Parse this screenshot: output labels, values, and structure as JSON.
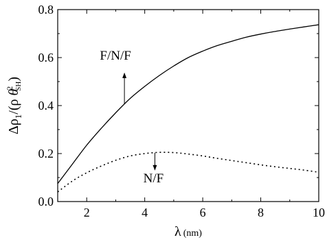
{
  "chart_data": {
    "type": "line",
    "xlabel": {
      "main": "λ",
      "unit": "(nm)"
    },
    "ylabel": {
      "prefix": "Δρ",
      "sub": "1",
      "mid": "/(ρ ",
      "theta": "θ",
      "sup": "2",
      "thsub": "SH",
      "close": ")"
    },
    "xlim": [
      1,
      10
    ],
    "ylim": [
      0,
      0.8
    ],
    "x_ticks": [
      2,
      4,
      6,
      8,
      10
    ],
    "y_ticks": [
      0.0,
      0.2,
      0.4,
      0.6,
      0.8
    ],
    "x_tick_labels": [
      "2",
      "4",
      "6",
      "8",
      "10"
    ],
    "y_tick_labels": [
      "0.0",
      "0.2",
      "0.4",
      "0.6",
      "0.8"
    ],
    "series": [
      {
        "name": "F/N/F",
        "style": "solid",
        "x": [
          1,
          1.5,
          2,
          2.5,
          3,
          3.5,
          4,
          4.5,
          5,
          5.5,
          6,
          6.5,
          7,
          7.5,
          8,
          8.5,
          9,
          9.5,
          10
        ],
        "y": [
          0.075,
          0.155,
          0.235,
          0.305,
          0.37,
          0.43,
          0.48,
          0.525,
          0.565,
          0.6,
          0.627,
          0.65,
          0.668,
          0.685,
          0.698,
          0.709,
          0.719,
          0.728,
          0.737
        ]
      },
      {
        "name": "N/F",
        "style": "dotted",
        "x": [
          1,
          1.5,
          2,
          2.5,
          3,
          3.5,
          4,
          4.5,
          5,
          5.5,
          6,
          6.5,
          7,
          7.5,
          8,
          8.5,
          9,
          9.5,
          10
        ],
        "y": [
          0.04,
          0.085,
          0.12,
          0.148,
          0.172,
          0.19,
          0.2,
          0.205,
          0.204,
          0.198,
          0.19,
          0.18,
          0.171,
          0.162,
          0.153,
          0.145,
          0.138,
          0.131,
          0.122
        ]
      }
    ],
    "annotations": [
      {
        "text": "F/N/F",
        "series": 0,
        "at_x": 3.3,
        "arrow": "up"
      },
      {
        "text": "N/F",
        "series": 1,
        "at_x": 4.35,
        "arrow": "down"
      }
    ]
  }
}
